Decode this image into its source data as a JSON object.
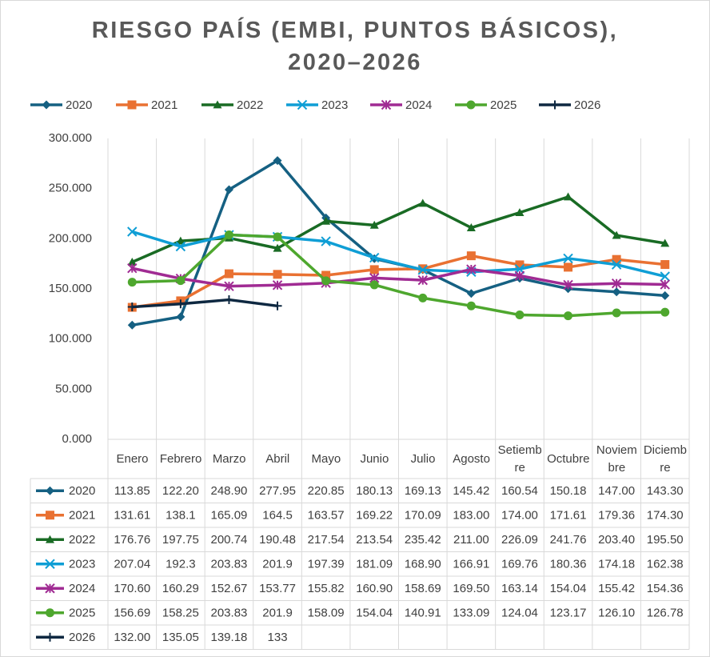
{
  "chart_data": {
    "type": "line",
    "title": "RIESGO PAÍS (EMBI, PUNTOS BÁSICOS), 2020–2026",
    "categories": [
      "Enero",
      "Febrero",
      "Marzo",
      "Abril",
      "Mayo",
      "Junio",
      "Julio",
      "Agosto",
      "Setiembre",
      "Octubre",
      "Noviembre",
      "Diciembre"
    ],
    "ylim": [
      0,
      300
    ],
    "yticks": [
      {
        "value": 0,
        "label": "0.000"
      },
      {
        "value": 50,
        "label": "50.000"
      },
      {
        "value": 100,
        "label": "100.000"
      },
      {
        "value": 150,
        "label": "150.000"
      },
      {
        "value": 200,
        "label": "200.000"
      },
      {
        "value": 250,
        "label": "250.000"
      },
      {
        "value": 300,
        "label": "300.000"
      }
    ],
    "grid": false,
    "legend": "top",
    "series": [
      {
        "name": "2020",
        "color": "#156082",
        "marker": "diamond",
        "values": [
          113.85,
          122.2,
          248.9,
          277.95,
          220.85,
          180.13,
          169.13,
          145.42,
          160.54,
          150.18,
          147,
          143.3
        ],
        "value_labels": [
          "113.85",
          "122.20",
          "248.90",
          "277.95",
          "220.85",
          "180.13",
          "169.13",
          "145.42",
          "160.54",
          "150.18",
          "147.00",
          "143.30"
        ]
      },
      {
        "name": "2021",
        "color": "#e97132",
        "marker": "square",
        "values": [
          131.61,
          138.1,
          165.09,
          164.5,
          163.57,
          169.22,
          170.09,
          183,
          174,
          171.61,
          179.36,
          174.3
        ],
        "value_labels": [
          "131.61",
          "138.1",
          "165.09",
          "164.5",
          "163.57",
          "169.22",
          "170.09",
          "183.00",
          "174.00",
          "171.61",
          "179.36",
          "174.30"
        ]
      },
      {
        "name": "2022",
        "color": "#196b24",
        "marker": "triangle",
        "values": [
          176.76,
          197.75,
          200.74,
          190.48,
          217.54,
          213.54,
          235.42,
          211,
          226.09,
          241.76,
          203.4,
          195.5
        ],
        "value_labels": [
          "176.76",
          "197.75",
          "200.74",
          "190.48",
          "217.54",
          "213.54",
          "235.42",
          "211.00",
          "226.09",
          "241.76",
          "203.40",
          "195.50"
        ]
      },
      {
        "name": "2023",
        "color": "#0f9ed5",
        "marker": "x",
        "values": [
          207.04,
          192.3,
          203.83,
          201.9,
          197.39,
          181.09,
          168.9,
          166.91,
          169.76,
          180.36,
          174.18,
          162.38
        ],
        "value_labels": [
          "207.04",
          "192.3",
          "203.83",
          "201.9",
          "197.39",
          "181.09",
          "168.90",
          "166.91",
          "169.76",
          "180.36",
          "174.18",
          "162.38"
        ]
      },
      {
        "name": "2024",
        "color": "#a02b93",
        "marker": "star",
        "values": [
          170.6,
          160.29,
          152.67,
          153.77,
          155.82,
          160.9,
          158.69,
          169.5,
          163.14,
          154.04,
          155.42,
          154.36
        ],
        "value_labels": [
          "170.60",
          "160.29",
          "152.67",
          "153.77",
          "155.82",
          "160.90",
          "158.69",
          "169.50",
          "163.14",
          "154.04",
          "155.42",
          "154.36"
        ]
      },
      {
        "name": "2025",
        "color": "#4ea72e",
        "marker": "circle",
        "values": [
          156.69,
          158.25,
          203.83,
          201.9,
          158.09,
          154.04,
          140.91,
          133.09,
          124.04,
          123.17,
          126.1,
          126.78
        ],
        "value_labels": [
          "156.69",
          "158.25",
          "203.83",
          "201.9",
          "158.09",
          "154.04",
          "140.91",
          "133.09",
          "124.04",
          "123.17",
          "126.10",
          "126.78"
        ]
      },
      {
        "name": "2026",
        "color": "#0e2841",
        "marker": "plus",
        "values": [
          132,
          135.05,
          139.18,
          133,
          null,
          null,
          null,
          null,
          null,
          null,
          null,
          null
        ],
        "value_labels": [
          "132.00",
          "135.05",
          "139.18",
          "133",
          null,
          null,
          null,
          null,
          null,
          null,
          null,
          null
        ]
      }
    ]
  }
}
